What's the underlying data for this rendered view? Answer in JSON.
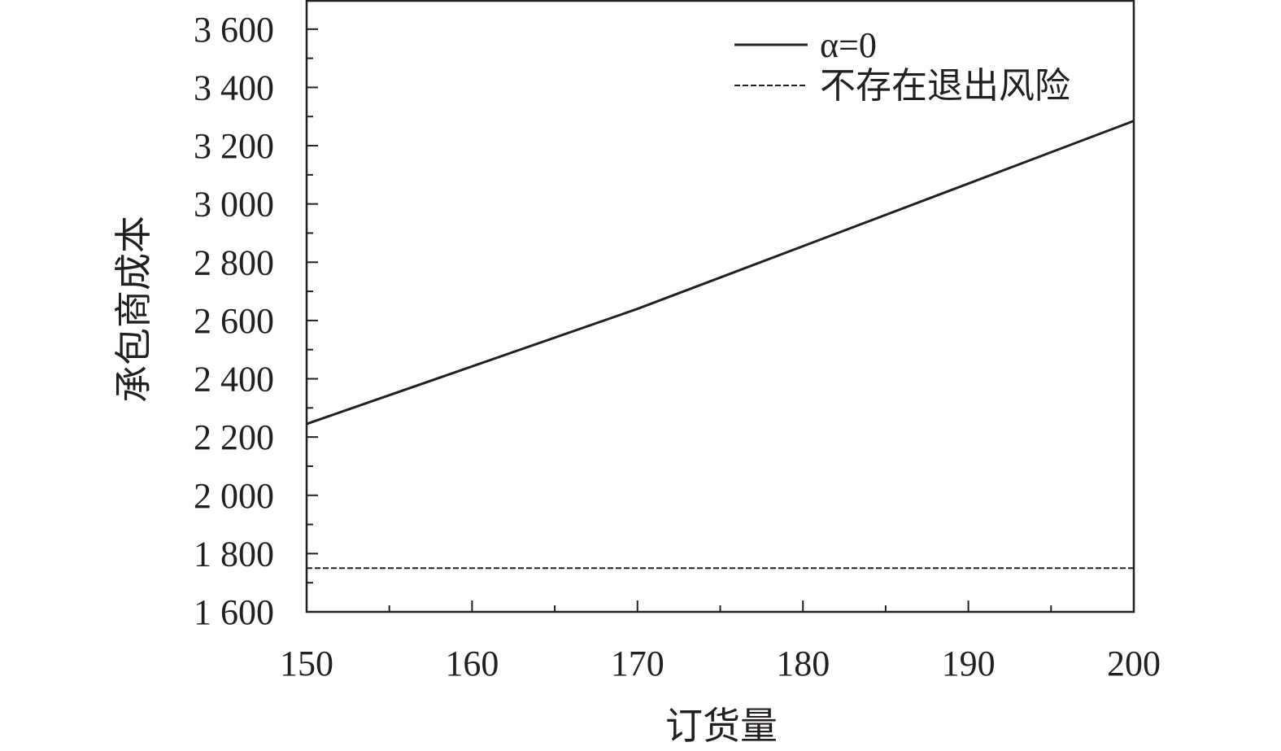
{
  "chart_data": {
    "type": "line",
    "title": "",
    "xlabel": "订货量",
    "ylabel": "承包商成本",
    "xlim": [
      150,
      200
    ],
    "ylim": [
      1600,
      3700
    ],
    "x_ticks": [
      150,
      160,
      170,
      180,
      190,
      200
    ],
    "x_tick_labels": [
      "150",
      "160",
      "170",
      "180",
      "190",
      "200"
    ],
    "y_ticks": [
      1600,
      1800,
      2000,
      2200,
      2400,
      2600,
      2800,
      3000,
      3200,
      3400,
      3600
    ],
    "y_tick_labels": [
      "1 600",
      "1 800",
      "2 000",
      "2 200",
      "2 400",
      "2 600",
      "2 800",
      "3 000",
      "3 200",
      "3 400",
      "3 600"
    ],
    "grid": false,
    "legend_position": "top-right",
    "series": [
      {
        "name": "α=0",
        "style": "solid",
        "color": "#231f20",
        "x": [
          150,
          170,
          200
        ],
        "y": [
          2245,
          2640,
          3285
        ]
      },
      {
        "name": "不存在退出风险",
        "style": "dashed",
        "color": "#231f20",
        "x": [
          150,
          200
        ],
        "y": [
          1750,
          1750
        ]
      }
    ]
  }
}
